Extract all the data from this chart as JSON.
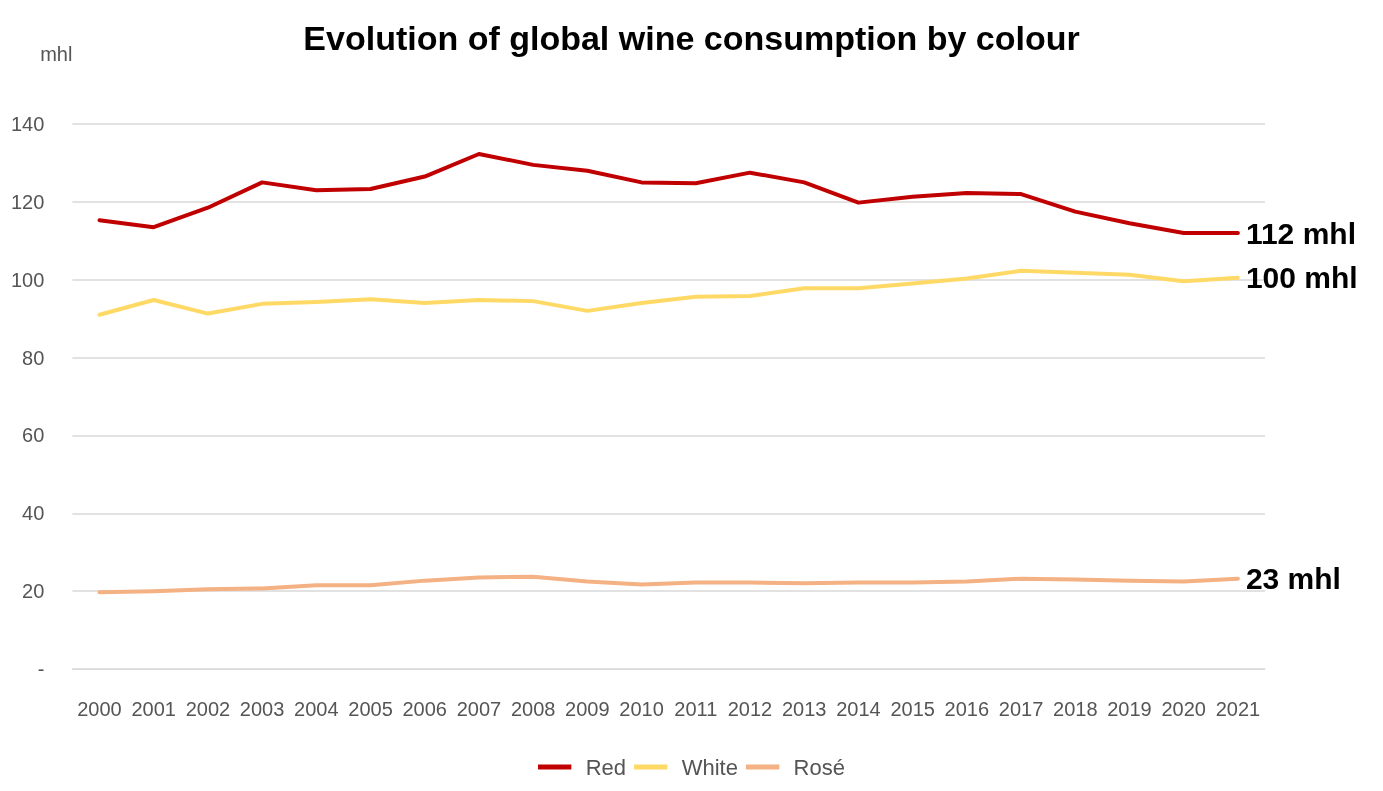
{
  "chart_data": {
    "type": "line",
    "title": "Evolution of global wine consumption by colour",
    "ylabel": "mhl",
    "categories": [
      "2000",
      "2001",
      "2002",
      "2003",
      "2004",
      "2005",
      "2006",
      "2007",
      "2008",
      "2009",
      "2010",
      "2011",
      "2012",
      "2013",
      "2014",
      "2015",
      "2016",
      "2017",
      "2018",
      "2019",
      "2020",
      "2021"
    ],
    "series": [
      {
        "name": "Red",
        "color": "#c00000",
        "values": [
          115.3,
          113.5,
          118.5,
          125,
          123,
          123.3,
          126.5,
          132.3,
          129.5,
          128,
          125,
          124.8,
          127.5,
          125,
          119.8,
          121.3,
          122.3,
          122,
          117.5,
          114.5,
          112,
          112
        ]
      },
      {
        "name": "White",
        "color": "#ffd966",
        "values": [
          91,
          94.8,
          91.3,
          93.8,
          94.3,
          95,
          94,
          94.8,
          94.5,
          92,
          94,
          95.6,
          95.8,
          97.8,
          97.8,
          99,
          100.3,
          102.3,
          101.8,
          101.3,
          99.6,
          100.5
        ]
      },
      {
        "name": "Rosé",
        "color": "#f4b183",
        "values": [
          19.7,
          20,
          20.5,
          20.7,
          21.5,
          21.5,
          22.7,
          23.5,
          23.7,
          22.5,
          21.7,
          22.2,
          22.2,
          22,
          22.2,
          22.2,
          22.5,
          23.2,
          23,
          22.7,
          22.5,
          23.2
        ]
      }
    ],
    "ylim": [
      0,
      140
    ],
    "yticks": [
      {
        "value": 0,
        "label": "-"
      },
      20,
      40,
      60,
      80,
      100,
      120,
      140
    ],
    "annotations": [
      {
        "text": "112 mhl",
        "x": "2021",
        "y": 112
      },
      {
        "text": "100 mhl",
        "x": "2021",
        "y": 100.5
      },
      {
        "text": "23 mhl",
        "x": "2021",
        "y": 23.2
      }
    ],
    "grid": "y",
    "legend": "bottom",
    "marker": "none",
    "line_style": "solid"
  }
}
